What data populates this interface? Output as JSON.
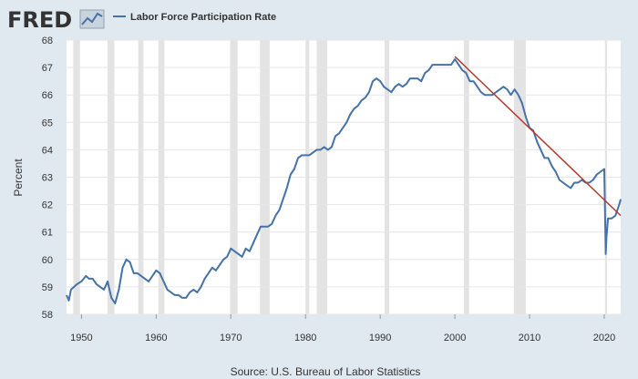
{
  "header": {
    "logo_text": "FRED",
    "legend_label": "Labor Force Participation Rate",
    "series_color": "#4572a7",
    "trend_color": "#b03a2e"
  },
  "footer": {
    "source": "Source: U.S. Bureau of Labor Statistics"
  },
  "chart_data": {
    "type": "line",
    "title": "",
    "xlabel": "",
    "ylabel": "Percent",
    "xlim": [
      1948,
      2022.2
    ],
    "ylim": [
      58,
      68
    ],
    "grid": "horizontal",
    "legend_position": "top-left",
    "x_ticks": [
      "1950",
      "1960",
      "1970",
      "1980",
      "1990",
      "2000",
      "2010",
      "2020"
    ],
    "y_ticks": [
      "58",
      "59",
      "60",
      "61",
      "62",
      "63",
      "64",
      "65",
      "66",
      "67",
      "68"
    ],
    "recessions": [
      [
        1948.9,
        1949.8
      ],
      [
        1953.5,
        1954.4
      ],
      [
        1957.6,
        1958.3
      ],
      [
        1960.3,
        1961.1
      ],
      [
        1969.9,
        1970.9
      ],
      [
        1973.9,
        1975.2
      ],
      [
        1980.0,
        1980.5
      ],
      [
        1981.5,
        1982.9
      ],
      [
        1990.6,
        1991.2
      ],
      [
        2001.2,
        2001.9
      ],
      [
        2007.9,
        2009.5
      ],
      [
        2020.1,
        2020.3
      ]
    ],
    "series": [
      {
        "name": "Labor Force Participation Rate",
        "x": [
          1948.0,
          1948.3,
          1948.6,
          1949.0,
          1949.4,
          1950.0,
          1950.6,
          1951.0,
          1951.5,
          1952.0,
          1952.5,
          1953.0,
          1953.5,
          1954.0,
          1954.5,
          1955.0,
          1955.5,
          1956.0,
          1956.5,
          1957.0,
          1957.5,
          1958.0,
          1958.5,
          1959.0,
          1959.5,
          1960.0,
          1960.5,
          1961.0,
          1961.5,
          1962.0,
          1962.5,
          1963.0,
          1963.5,
          1964.0,
          1964.5,
          1965.0,
          1965.5,
          1966.0,
          1966.5,
          1967.0,
          1967.5,
          1968.0,
          1968.5,
          1969.0,
          1969.5,
          1970.0,
          1970.5,
          1971.0,
          1971.5,
          1972.0,
          1972.5,
          1973.0,
          1973.5,
          1974.0,
          1974.5,
          1975.0,
          1975.5,
          1976.0,
          1976.5,
          1977.0,
          1977.5,
          1978.0,
          1978.5,
          1979.0,
          1979.5,
          1980.0,
          1980.5,
          1981.0,
          1981.5,
          1982.0,
          1982.5,
          1983.0,
          1983.5,
          1984.0,
          1984.5,
          1985.0,
          1985.5,
          1986.0,
          1986.5,
          1987.0,
          1987.5,
          1988.0,
          1988.5,
          1989.0,
          1989.5,
          1990.0,
          1990.5,
          1991.0,
          1991.5,
          1992.0,
          1992.5,
          1993.0,
          1993.5,
          1994.0,
          1994.5,
          1995.0,
          1995.5,
          1996.0,
          1996.5,
          1997.0,
          1997.5,
          1998.0,
          1998.5,
          1999.0,
          1999.5,
          2000.0,
          2000.5,
          2001.0,
          2001.5,
          2002.0,
          2002.5,
          2003.0,
          2003.5,
          2004.0,
          2004.5,
          2005.0,
          2005.5,
          2006.0,
          2006.5,
          2007.0,
          2007.5,
          2008.0,
          2008.5,
          2009.0,
          2009.5,
          2010.0,
          2010.5,
          2011.0,
          2011.5,
          2012.0,
          2012.5,
          2013.0,
          2013.5,
          2014.0,
          2014.5,
          2015.0,
          2015.5,
          2016.0,
          2016.5,
          2017.0,
          2017.5,
          2018.0,
          2018.5,
          2019.0,
          2019.5,
          2020.0,
          2020.2,
          2020.3,
          2020.5,
          2021.0,
          2021.5,
          2022.0,
          2022.2
        ],
        "values": [
          58.7,
          58.5,
          58.9,
          59.0,
          59.1,
          59.2,
          59.4,
          59.3,
          59.3,
          59.1,
          59.0,
          58.9,
          59.2,
          58.6,
          58.4,
          58.9,
          59.7,
          60.0,
          59.9,
          59.5,
          59.5,
          59.4,
          59.3,
          59.2,
          59.4,
          59.6,
          59.5,
          59.2,
          58.9,
          58.8,
          58.7,
          58.7,
          58.6,
          58.6,
          58.8,
          58.9,
          58.8,
          59.0,
          59.3,
          59.5,
          59.7,
          59.6,
          59.8,
          60.0,
          60.1,
          60.4,
          60.3,
          60.2,
          60.1,
          60.4,
          60.3,
          60.6,
          60.9,
          61.2,
          61.2,
          61.2,
          61.3,
          61.6,
          61.8,
          62.2,
          62.6,
          63.1,
          63.3,
          63.7,
          63.8,
          63.8,
          63.8,
          63.9,
          64.0,
          64.0,
          64.1,
          64.0,
          64.1,
          64.5,
          64.6,
          64.8,
          65.0,
          65.3,
          65.5,
          65.6,
          65.8,
          65.9,
          66.1,
          66.5,
          66.6,
          66.5,
          66.3,
          66.2,
          66.1,
          66.3,
          66.4,
          66.3,
          66.4,
          66.6,
          66.6,
          66.6,
          66.5,
          66.8,
          66.9,
          67.1,
          67.1,
          67.1,
          67.1,
          67.1,
          67.1,
          67.3,
          67.1,
          66.9,
          66.8,
          66.5,
          66.5,
          66.3,
          66.1,
          66.0,
          66.0,
          66.0,
          66.1,
          66.2,
          66.3,
          66.2,
          66.0,
          66.2,
          66.0,
          65.7,
          65.2,
          64.8,
          64.7,
          64.3,
          64.0,
          63.7,
          63.7,
          63.4,
          63.2,
          62.9,
          62.8,
          62.7,
          62.6,
          62.8,
          62.8,
          62.9,
          62.8,
          62.8,
          62.9,
          63.1,
          63.2,
          63.3,
          60.2,
          60.8,
          61.5,
          61.5,
          61.6,
          62.0,
          62.2
        ]
      },
      {
        "name": "trend",
        "x": [
          2000.0,
          2022.2
        ],
        "values": [
          67.4,
          61.6
        ]
      }
    ]
  }
}
